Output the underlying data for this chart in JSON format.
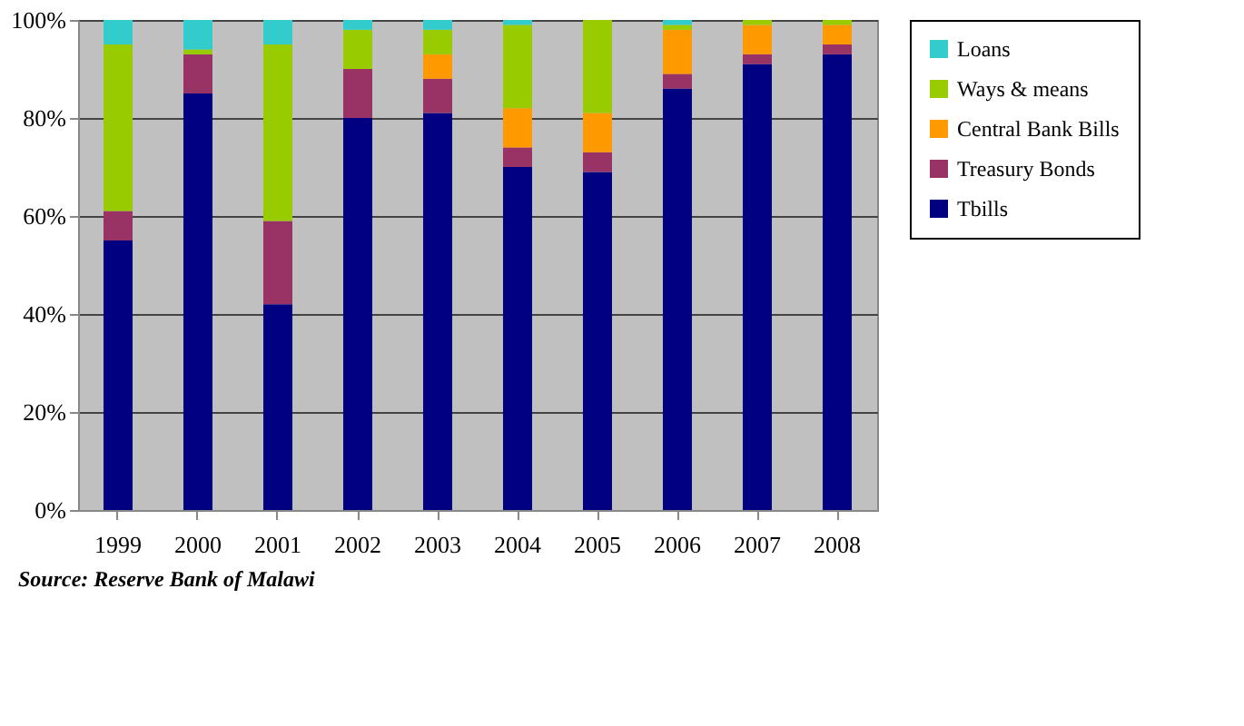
{
  "chart_data": {
    "type": "bar",
    "stacked": true,
    "categories": [
      "1999",
      "2000",
      "2001",
      "2002",
      "2003",
      "2004",
      "2005",
      "2006",
      "2007",
      "2008"
    ],
    "series": [
      {
        "name": "Tbills",
        "color": "#000080",
        "values": [
          55,
          85,
          42,
          80,
          81,
          70,
          69,
          86,
          91,
          93
        ]
      },
      {
        "name": "Treasury Bonds",
        "color": "#993366",
        "values": [
          6,
          8,
          17,
          10,
          7,
          4,
          4,
          3,
          2,
          2
        ]
      },
      {
        "name": "Central Bank Bills",
        "color": "#ff9900",
        "values": [
          0,
          0,
          0,
          0,
          5,
          8,
          8,
          9,
          6,
          4
        ]
      },
      {
        "name": "Ways & means",
        "color": "#99cc00",
        "values": [
          34,
          1,
          36,
          8,
          5,
          17,
          19,
          1,
          1,
          1
        ]
      },
      {
        "name": "Loans",
        "color": "#33cccc",
        "values": [
          5,
          6,
          5,
          2,
          2,
          1,
          0,
          1,
          0,
          0
        ]
      }
    ],
    "ylim": [
      0,
      100
    ],
    "yticks": [
      {
        "value": 0,
        "label": "0%"
      },
      {
        "value": 20,
        "label": "20%"
      },
      {
        "value": 40,
        "label": "40%"
      },
      {
        "value": 60,
        "label": "60%"
      },
      {
        "value": 80,
        "label": "80%"
      },
      {
        "value": 100,
        "label": "100%"
      }
    ],
    "grid": "y",
    "legend": "right",
    "annotations": [
      "Source: Reserve Bank of  Malawi"
    ]
  }
}
